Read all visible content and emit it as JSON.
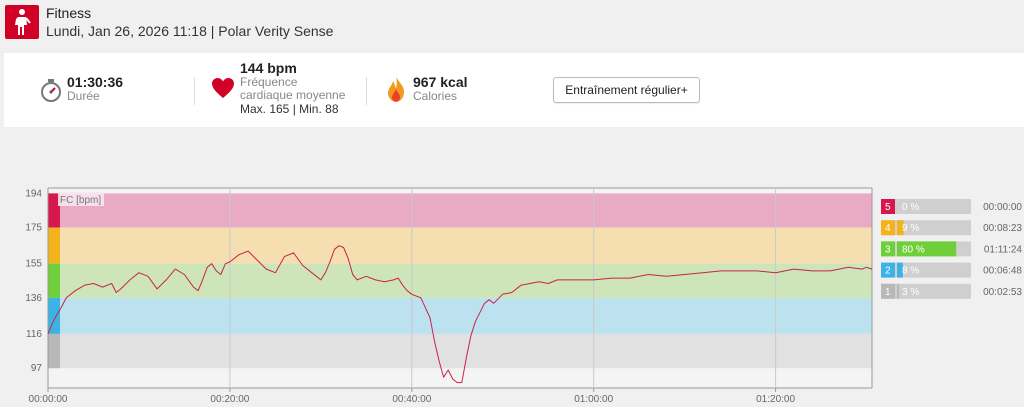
{
  "header": {
    "sport_icon": "person-walking-icon",
    "sport": "Fitness",
    "session_info": "Lundi, Jan 26, 2026 11:18 | Polar Verity Sense"
  },
  "summary": {
    "duration": {
      "icon": "stopwatch-icon",
      "value": "01:30:36",
      "label": "Durée"
    },
    "heart_rate": {
      "icon": "heart-icon",
      "value": "144 bpm",
      "label_line1": "Fréquence",
      "label_line2": "cardiaque moyenne",
      "minmax": "Max. 165  |  Min. 88"
    },
    "calories": {
      "icon": "flame-icon",
      "value": "967 kcal",
      "label": "Calories"
    },
    "button_label": "Entraînement régulier+"
  },
  "colors": {
    "brand_red": "#d10027",
    "zone5": "#e9abc4",
    "zone4": "#f5dfb0",
    "zone3": "#cde5b9",
    "zone2": "#bde2ef",
    "zone1": "#e1e1e1",
    "zone5_strong": "#d6184f",
    "zone4_strong": "#f4b31c",
    "zone3_strong": "#6fcf3b",
    "zone2_strong": "#3bb3e6",
    "zone1_strong": "#b8b8b8",
    "hr_line": "#c8234a"
  },
  "chart_data": {
    "type": "line",
    "series_label": "FC [bpm]",
    "y_ticks": [
      194,
      175,
      155,
      136,
      116,
      97
    ],
    "x_ticks": [
      "00:00:00",
      "00:20:00",
      "00:40:00",
      "01:00:00",
      "01:20:00"
    ],
    "x_range_minutes": [
      0,
      90.6
    ],
    "y_range": [
      86,
      197
    ],
    "zones": [
      {
        "zone": "5",
        "from": 175,
        "to": 194
      },
      {
        "zone": "4",
        "from": 155,
        "to": 175
      },
      {
        "zone": "3",
        "from": 136,
        "to": 155
      },
      {
        "zone": "2",
        "from": 116,
        "to": 136
      },
      {
        "zone": "1",
        "from": 97,
        "to": 116
      }
    ],
    "zone_summary": [
      {
        "zone": "5",
        "percent": 0,
        "label": "0 %",
        "time": "00:00:00"
      },
      {
        "zone": "4",
        "percent": 9,
        "label": "9 %",
        "time": "00:08:23"
      },
      {
        "zone": "3",
        "percent": 80,
        "label": "80 %",
        "time": "01:11:24"
      },
      {
        "zone": "2",
        "percent": 8,
        "label": "8 %",
        "time": "00:06:48"
      },
      {
        "zone": "1",
        "percent": 3,
        "label": "3 %",
        "time": "00:02:53"
      }
    ],
    "heart_rate": {
      "x_minutes": [
        0,
        0.5,
        1,
        1.5,
        2,
        3,
        4,
        5,
        6,
        7,
        7.5,
        8,
        9,
        10,
        11,
        12,
        13,
        14,
        15,
        16,
        16.5,
        17,
        17.5,
        18,
        18.5,
        19,
        19.5,
        20,
        21,
        22,
        23,
        24,
        25,
        26,
        27,
        28,
        29,
        30,
        30.5,
        31,
        31.5,
        32,
        32.5,
        33,
        33.5,
        34,
        35,
        36,
        37,
        38,
        38.5,
        39,
        39.5,
        40,
        41,
        42,
        42.5,
        43,
        43.5,
        44,
        44.5,
        45,
        45.5,
        46,
        46.5,
        47,
        47.5,
        48,
        48.5,
        49,
        50,
        51,
        52,
        53,
        54,
        55,
        56,
        57,
        58,
        60,
        62,
        64,
        66,
        68,
        70,
        72,
        74,
        76,
        78,
        80,
        82,
        84,
        86,
        88,
        89.5,
        90,
        90.6
      ],
      "bpm": [
        116,
        122,
        127,
        131,
        136,
        140,
        143,
        144,
        142,
        144,
        139,
        141,
        146,
        150,
        148,
        141,
        146,
        152,
        149,
        142,
        140,
        146,
        153,
        155,
        151,
        149,
        155,
        156,
        160,
        162,
        157,
        152,
        150,
        159,
        161,
        154,
        150,
        146,
        150,
        156,
        163,
        165,
        164,
        158,
        149,
        146,
        148,
        146,
        145,
        146,
        147,
        143,
        140,
        138,
        136,
        125,
        112,
        101,
        92,
        96,
        91,
        89,
        89,
        103,
        115,
        123,
        128,
        133,
        135,
        133,
        138,
        139,
        143,
        144,
        145,
        144,
        146,
        146,
        146,
        146,
        147,
        147,
        149,
        148,
        149,
        150,
        151,
        151,
        151,
        150,
        152,
        151,
        151,
        153,
        152,
        153,
        152,
        136
      ]
    }
  }
}
